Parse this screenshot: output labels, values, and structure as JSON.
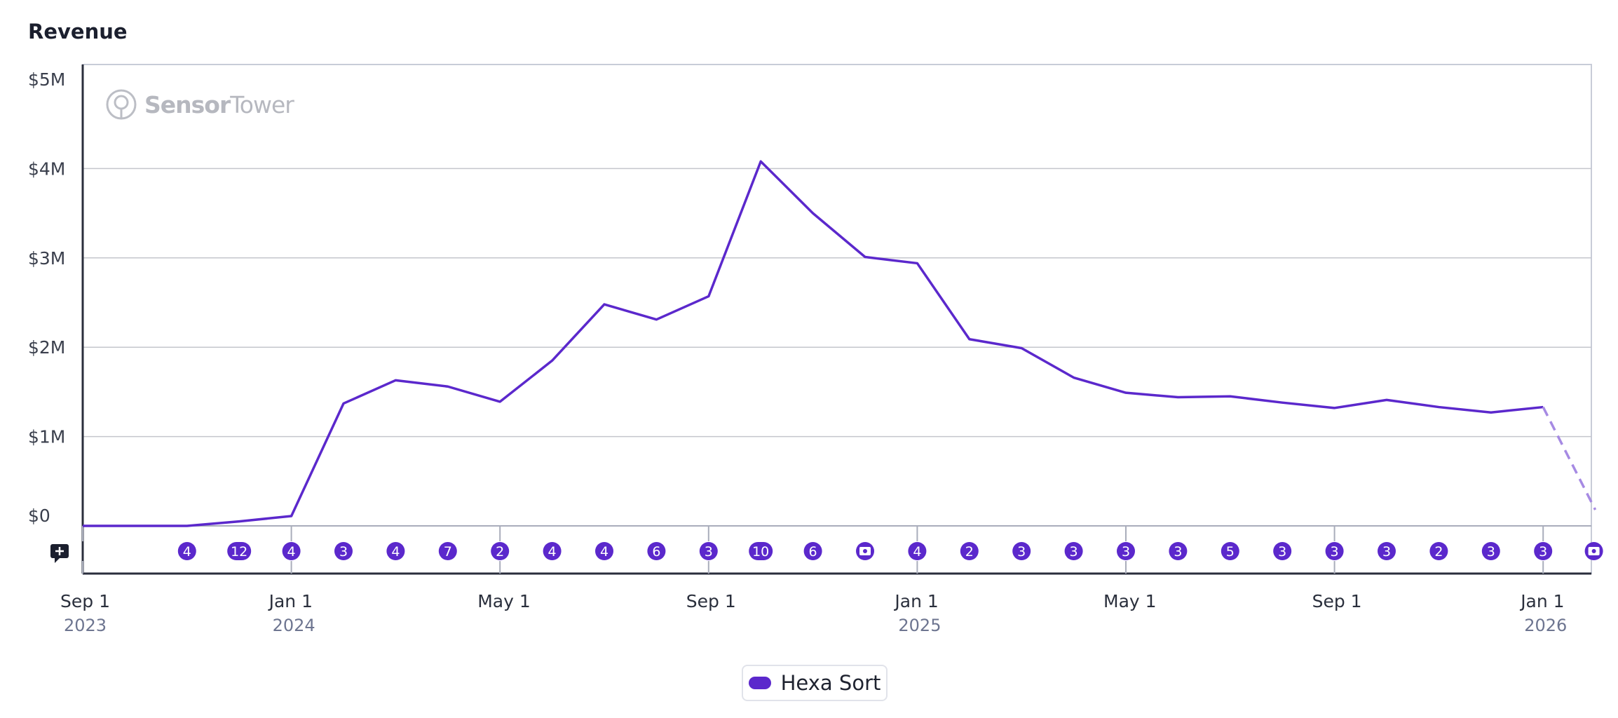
{
  "chart_data": {
    "type": "line",
    "title": "Revenue",
    "ylabel": "",
    "xlabel": "",
    "ylim": [
      0,
      5000000
    ],
    "y_ticks": [
      {
        "value": 0,
        "label": "$0"
      },
      {
        "value": 1000000,
        "label": "$1M"
      },
      {
        "value": 2000000,
        "label": "$2M"
      },
      {
        "value": 3000000,
        "label": "$3M"
      },
      {
        "value": 4000000,
        "label": "$4M"
      },
      {
        "value": 5000000,
        "label": "$5M"
      }
    ],
    "x_month_index_range": [
      0,
      28.9
    ],
    "x_ticks": [
      {
        "month_index": 0,
        "label": "Sep 1",
        "year": "2023"
      },
      {
        "month_index": 4,
        "label": "Jan 1",
        "year": "2024"
      },
      {
        "month_index": 8,
        "label": "May 1",
        "year": ""
      },
      {
        "month_index": 12,
        "label": "Sep 1",
        "year": ""
      },
      {
        "month_index": 16,
        "label": "Jan 1",
        "year": "2025"
      },
      {
        "month_index": 20,
        "label": "May 1",
        "year": ""
      },
      {
        "month_index": 24,
        "label": "Sep 1",
        "year": ""
      },
      {
        "month_index": 28,
        "label": "Jan 1",
        "year": "2026"
      }
    ],
    "series": [
      {
        "name": "Hexa Sort",
        "color": "#5b28cc",
        "forecast_color": "#a68ae3",
        "points": [
          {
            "month": "2023-09",
            "value": 0
          },
          {
            "month": "2023-10",
            "value": 0
          },
          {
            "month": "2023-11",
            "value": 0
          },
          {
            "month": "2023-12",
            "value": 50000
          },
          {
            "month": "2024-01",
            "value": 110000
          },
          {
            "month": "2024-02",
            "value": 1370000
          },
          {
            "month": "2024-03",
            "value": 1630000
          },
          {
            "month": "2024-04",
            "value": 1560000
          },
          {
            "month": "2024-05",
            "value": 1390000
          },
          {
            "month": "2024-06",
            "value": 1850000
          },
          {
            "month": "2024-07",
            "value": 2480000
          },
          {
            "month": "2024-08",
            "value": 2310000
          },
          {
            "month": "2024-09",
            "value": 2570000
          },
          {
            "month": "2024-10",
            "value": 4080000
          },
          {
            "month": "2024-11",
            "value": 3500000
          },
          {
            "month": "2024-12",
            "value": 3010000
          },
          {
            "month": "2025-01",
            "value": 2940000
          },
          {
            "month": "2025-02",
            "value": 2090000
          },
          {
            "month": "2025-03",
            "value": 1990000
          },
          {
            "month": "2025-04",
            "value": 1660000
          },
          {
            "month": "2025-05",
            "value": 1490000
          },
          {
            "month": "2025-06",
            "value": 1440000
          },
          {
            "month": "2025-07",
            "value": 1450000
          },
          {
            "month": "2025-08",
            "value": 1380000
          },
          {
            "month": "2025-09",
            "value": 1320000
          },
          {
            "month": "2025-10",
            "value": 1410000
          },
          {
            "month": "2025-11",
            "value": 1330000
          },
          {
            "month": "2025-12",
            "value": 1270000
          },
          {
            "month": "2026-01",
            "value": 1330000
          }
        ],
        "forecast_points": [
          {
            "month": "2026-01",
            "value": 1330000
          },
          {
            "month": "2026-02",
            "value": 180000
          }
        ]
      }
    ],
    "events": [
      {
        "month_index": 2,
        "label": "4"
      },
      {
        "month_index": 3,
        "label": "12"
      },
      {
        "month_index": 4,
        "label": "4"
      },
      {
        "month_index": 5,
        "label": "3"
      },
      {
        "month_index": 6,
        "label": "4"
      },
      {
        "month_index": 7,
        "label": "7"
      },
      {
        "month_index": 8,
        "label": "2"
      },
      {
        "month_index": 9,
        "label": "4"
      },
      {
        "month_index": 10,
        "label": "4"
      },
      {
        "month_index": 11,
        "label": "6"
      },
      {
        "month_index": 12,
        "label": "3"
      },
      {
        "month_index": 13,
        "label": "10"
      },
      {
        "month_index": 14,
        "label": "6"
      },
      {
        "month_index": 15,
        "label": "",
        "icon": "ticket-icon"
      },
      {
        "month_index": 16,
        "label": "4"
      },
      {
        "month_index": 17,
        "label": "2"
      },
      {
        "month_index": 18,
        "label": "3"
      },
      {
        "month_index": 19,
        "label": "3"
      },
      {
        "month_index": 20,
        "label": "3"
      },
      {
        "month_index": 21,
        "label": "3"
      },
      {
        "month_index": 22,
        "label": "5"
      },
      {
        "month_index": 23,
        "label": "3"
      },
      {
        "month_index": 24,
        "label": "3"
      },
      {
        "month_index": 25,
        "label": "3"
      },
      {
        "month_index": 26,
        "label": "2"
      },
      {
        "month_index": 27,
        "label": "3"
      },
      {
        "month_index": 28,
        "label": "3"
      },
      {
        "month_index": 29,
        "label": "",
        "icon": "ticket-icon"
      }
    ],
    "legend": {
      "position": "bottom-center",
      "entries": [
        "Hexa Sort"
      ]
    },
    "grid": true
  },
  "watermark": {
    "brand_bold": "Sensor",
    "brand_light": "Tower",
    "icon": "sensor-tower-logo-icon"
  },
  "add_annotation": {
    "icon": "add-comment-icon"
  }
}
